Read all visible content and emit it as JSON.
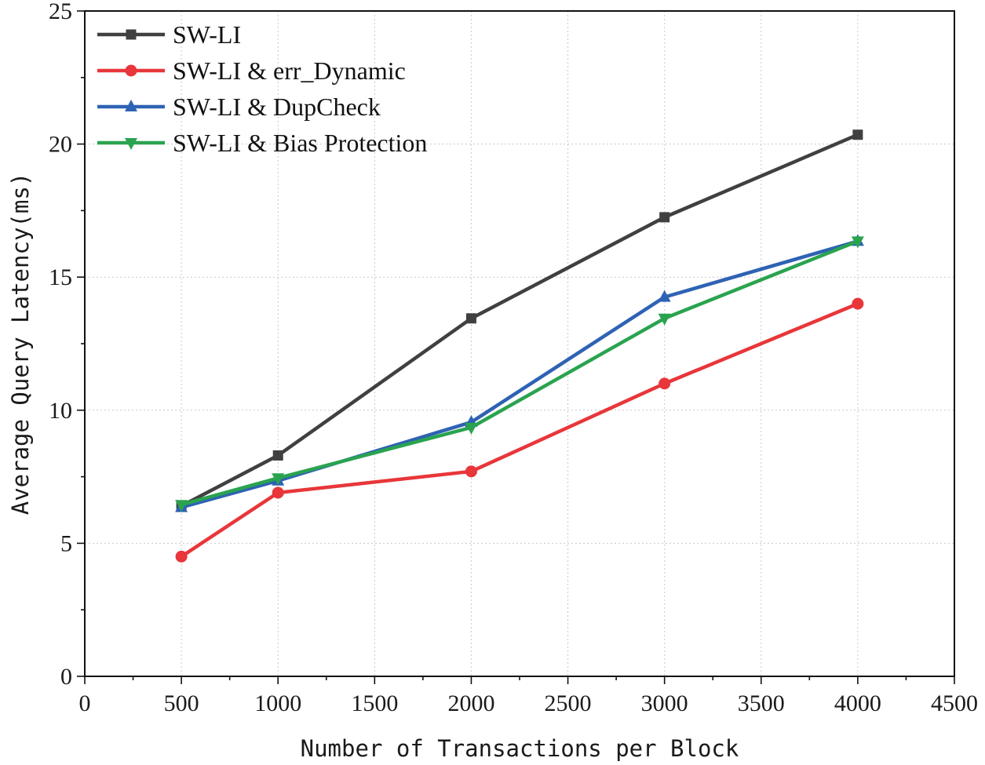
{
  "chart_data": {
    "type": "line",
    "title": "",
    "xlabel": "Number of Transactions per Block",
    "ylabel": "Average Query Latency(ms)",
    "xlim": [
      0,
      4500
    ],
    "ylim": [
      0,
      25
    ],
    "x_ticks": [
      0,
      500,
      1000,
      1500,
      2000,
      2500,
      3000,
      3500,
      4000,
      4500
    ],
    "y_ticks": [
      0,
      5,
      10,
      15,
      20,
      25
    ],
    "grid": true,
    "legend_position": "top-left",
    "x": [
      500,
      1000,
      2000,
      3000,
      4000
    ],
    "series": [
      {
        "name": "SW-LI",
        "color": "#404040",
        "marker": "square",
        "values": [
          6.4,
          8.3,
          13.45,
          17.25,
          20.35
        ]
      },
      {
        "name": "SW-LI & err_Dynamic",
        "color": "#e8363a",
        "marker": "circle",
        "values": [
          4.5,
          6.9,
          7.7,
          11.0,
          14.0
        ]
      },
      {
        "name": "SW-LI & DupCheck",
        "color": "#2e62b4",
        "marker": "triangle-up",
        "values": [
          6.35,
          7.35,
          9.55,
          14.25,
          16.35
        ]
      },
      {
        "name": "SW-LI & Bias Protection",
        "color": "#2aa34f",
        "marker": "triangle-down",
        "values": [
          6.45,
          7.45,
          9.35,
          13.45,
          16.35
        ]
      }
    ]
  }
}
